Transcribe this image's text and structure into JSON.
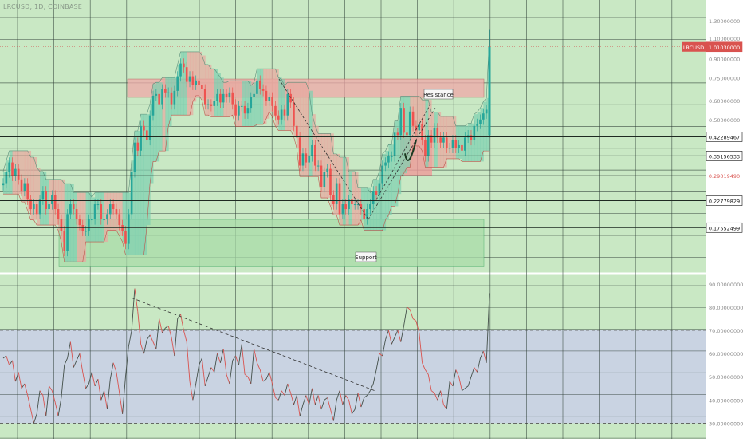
{
  "header": {
    "symbol_line": "LRCUSD, 1D, COINBASE"
  },
  "colors": {
    "bg_green": "#c9e8c4",
    "grid": "#2e3d36",
    "up": "#26a69a",
    "down": "#ef5350",
    "cloud_green": "#7fd0b0",
    "cloud_red": "#e8a9a0",
    "resistance_fill": "#f0a8a8",
    "support_fill": "#a9dca9",
    "rsi_band": "#c9cfe8",
    "rsi_line": "#44504a"
  },
  "price_axis": {
    "labels": [
      {
        "text": "1.30000000",
        "value": 1.3
      },
      {
        "text": "1.10000000",
        "value": 1.1
      },
      {
        "text": "0.90000000",
        "value": 0.9
      },
      {
        "text": "0.75000000",
        "value": 0.75
      },
      {
        "text": "0.60000000",
        "value": 0.6
      },
      {
        "text": "0.50000000",
        "value": 0.5
      }
    ],
    "tags": [
      {
        "text": "LRCUSD",
        "value": 1.0103,
        "kind": "symbol"
      },
      {
        "text": "1.01030000",
        "value": 1.0103,
        "kind": "current"
      },
      {
        "text": "0.42289467",
        "value": 0.42289467,
        "kind": "level"
      },
      {
        "text": "0.35156533",
        "value": 0.35156533,
        "kind": "level"
      },
      {
        "text": "0.29019490",
        "value": 0.2901949,
        "kind": "red"
      },
      {
        "text": "0.22779829",
        "value": 0.22779829,
        "kind": "level"
      },
      {
        "text": "0.17552499",
        "value": 0.17552499,
        "kind": "level"
      }
    ]
  },
  "annotations": {
    "resistance": "Resistance",
    "support": "Support"
  },
  "rsi_axis": {
    "labels": [
      {
        "text": "90.00000000",
        "value": 90
      },
      {
        "text": "80.00000000",
        "value": 80
      },
      {
        "text": "70.00000000",
        "value": 70
      },
      {
        "text": "60.00000000",
        "value": 60
      },
      {
        "text": "50.00000000",
        "value": 50
      },
      {
        "text": "40.00000000",
        "value": 40
      },
      {
        "text": "30.00000000",
        "value": 30
      }
    ],
    "band": [
      30,
      70
    ]
  },
  "chart_data": [
    {
      "type": "candlestick",
      "title": "LRCUSD, 1D, COINBASE",
      "scale": "log",
      "ylim": [
        0.115,
        1.45
      ],
      "levels": [
        0.42289467,
        0.35156533,
        0.2901949,
        0.22779829,
        0.17552499
      ],
      "resistance_zone": [
        0.62,
        0.74
      ],
      "support_zone": [
        0.12,
        0.19
      ],
      "close_series": [
        0.27,
        0.3,
        0.33,
        0.29,
        0.31,
        0.28,
        0.25,
        0.27,
        0.23,
        0.21,
        0.22,
        0.2,
        0.23,
        0.25,
        0.21,
        0.22,
        0.24,
        0.21,
        0.19,
        0.17,
        0.14,
        0.2,
        0.22,
        0.21,
        0.19,
        0.18,
        0.17,
        0.17,
        0.19,
        0.19,
        0.22,
        0.22,
        0.19,
        0.19,
        0.2,
        0.22,
        0.21,
        0.2,
        0.18,
        0.17,
        0.15,
        0.2,
        0.3,
        0.4,
        0.37,
        0.47,
        0.45,
        0.41,
        0.52,
        0.63,
        0.64,
        0.58,
        0.67,
        0.65,
        0.65,
        0.58,
        0.66,
        0.76,
        0.86,
        0.83,
        0.72,
        0.76,
        0.7,
        0.73,
        0.7,
        0.67,
        0.58,
        0.58,
        0.57,
        0.6,
        0.64,
        0.59,
        0.64,
        0.62,
        0.65,
        0.58,
        0.52,
        0.57,
        0.57,
        0.53,
        0.56,
        0.62,
        0.64,
        0.73,
        0.67,
        0.66,
        0.6,
        0.62,
        0.57,
        0.52,
        0.5,
        0.55,
        0.52,
        0.64,
        0.59,
        0.47,
        0.42,
        0.32,
        0.36,
        0.33,
        0.35,
        0.39,
        0.32,
        0.32,
        0.26,
        0.3,
        0.31,
        0.24,
        0.22,
        0.27,
        0.2,
        0.22,
        0.21,
        0.23,
        0.22,
        0.22,
        0.22,
        0.21,
        0.19,
        0.21,
        0.22,
        0.25,
        0.24,
        0.27,
        0.32,
        0.33,
        0.35,
        0.35,
        0.44,
        0.43,
        0.56,
        0.44,
        0.43,
        0.54,
        0.47,
        0.45,
        0.48,
        0.41,
        0.35,
        0.43,
        0.4,
        0.46,
        0.42,
        0.4,
        0.42,
        0.38,
        0.38,
        0.41,
        0.38,
        0.39,
        0.37,
        0.42,
        0.43,
        0.41,
        0.47,
        0.48,
        0.5,
        0.53,
        0.55,
        1.01
      ]
    },
    {
      "type": "line",
      "name": "RSI",
      "ylim": [
        25,
        92
      ],
      "overbought": 70,
      "oversold": 30,
      "values": [
        58,
        59,
        55,
        57,
        48,
        52,
        45,
        47,
        42,
        36,
        30,
        34,
        44,
        42,
        33,
        46,
        44,
        39,
        33,
        41,
        55,
        58,
        65,
        54,
        57,
        60,
        52,
        45,
        47,
        52,
        46,
        49,
        40,
        44,
        36,
        49,
        56,
        52,
        43,
        34,
        50,
        63,
        70,
        88,
        78,
        64,
        60,
        66,
        68,
        65,
        62,
        75,
        69,
        71,
        72,
        67,
        59,
        75,
        77,
        70,
        65,
        48,
        40,
        47,
        55,
        58,
        46,
        50,
        54,
        52,
        60,
        56,
        62,
        51,
        47,
        57,
        59,
        55,
        64,
        51,
        50,
        47,
        62,
        56,
        53,
        48,
        49,
        52,
        47,
        41,
        40,
        44,
        42,
        47,
        43,
        38,
        42,
        33,
        38,
        42,
        38,
        45,
        38,
        42,
        36,
        40,
        41,
        36,
        31,
        40,
        44,
        38,
        42,
        40,
        34,
        36,
        43,
        37,
        41,
        42,
        44,
        47,
        53,
        60,
        59,
        66,
        70,
        64,
        67,
        70,
        65,
        72,
        80,
        79,
        75,
        74,
        69,
        56,
        53,
        51,
        44,
        43,
        40,
        44,
        38,
        36,
        48,
        46,
        53,
        50,
        44,
        45,
        46,
        50,
        54,
        52,
        58,
        61,
        56,
        86
      ]
    }
  ]
}
